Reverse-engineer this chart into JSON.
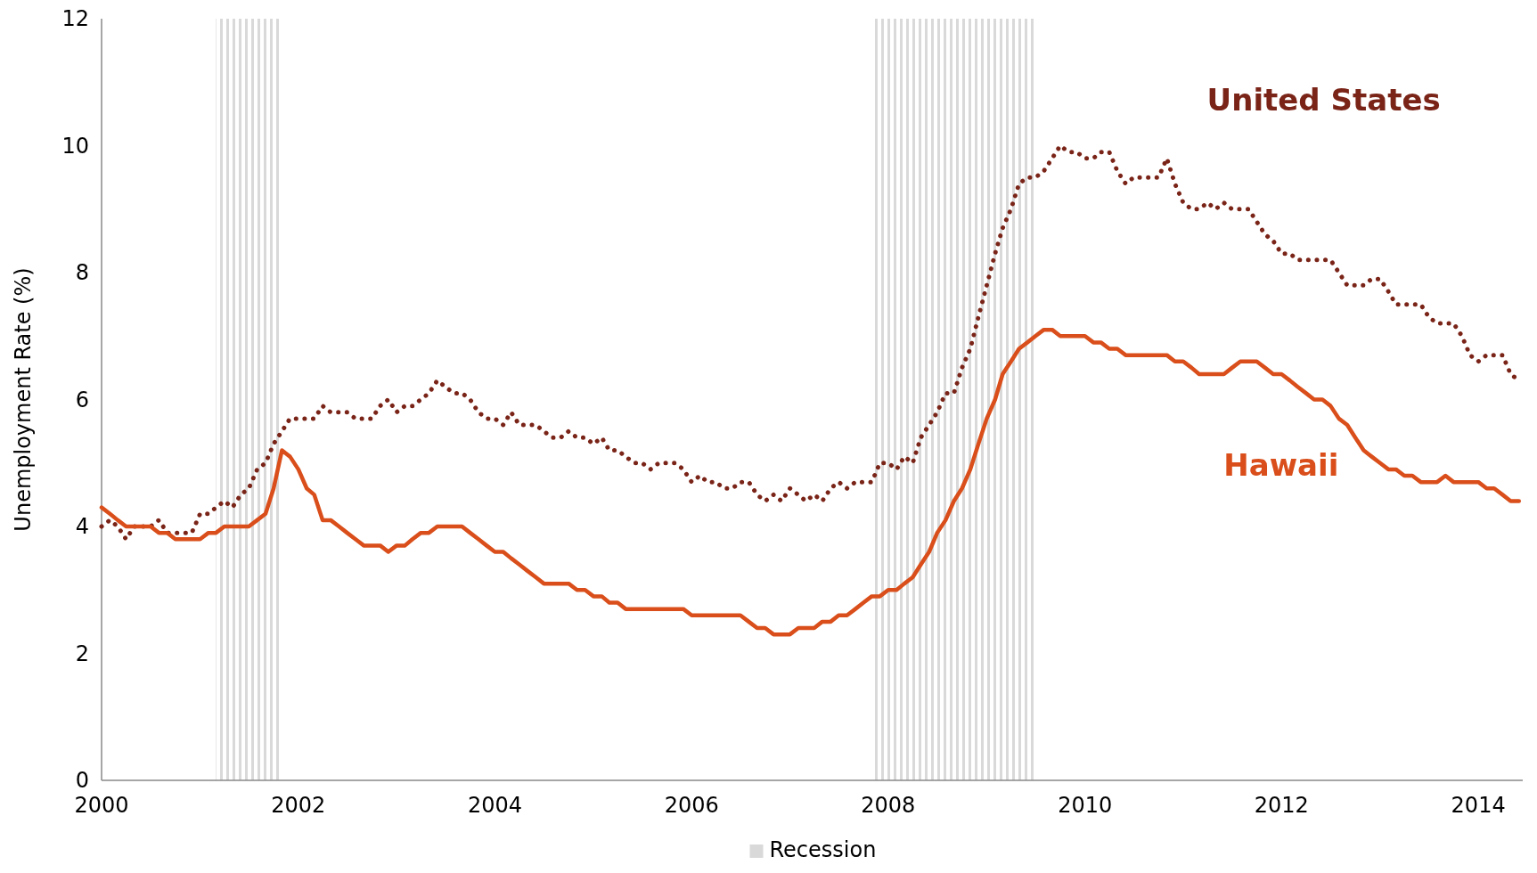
{
  "chart_data": {
    "type": "line",
    "ylabel": "Unemployment Rate (%)",
    "x": [
      "2000-01",
      "2000-02",
      "2000-03",
      "2000-04",
      "2000-05",
      "2000-06",
      "2000-07",
      "2000-08",
      "2000-09",
      "2000-10",
      "2000-11",
      "2000-12",
      "2001-01",
      "2001-02",
      "2001-03",
      "2001-04",
      "2001-05",
      "2001-06",
      "2001-07",
      "2001-08",
      "2001-09",
      "2001-10",
      "2001-11",
      "2001-12",
      "2002-01",
      "2002-02",
      "2002-03",
      "2002-04",
      "2002-05",
      "2002-06",
      "2002-07",
      "2002-08",
      "2002-09",
      "2002-10",
      "2002-11",
      "2002-12",
      "2003-01",
      "2003-02",
      "2003-03",
      "2003-04",
      "2003-05",
      "2003-06",
      "2003-07",
      "2003-08",
      "2003-09",
      "2003-10",
      "2003-11",
      "2003-12",
      "2004-01",
      "2004-02",
      "2004-03",
      "2004-04",
      "2004-05",
      "2004-06",
      "2004-07",
      "2004-08",
      "2004-09",
      "2004-10",
      "2004-11",
      "2004-12",
      "2005-01",
      "2005-02",
      "2005-03",
      "2005-04",
      "2005-05",
      "2005-06",
      "2005-07",
      "2005-08",
      "2005-09",
      "2005-10",
      "2005-11",
      "2005-12",
      "2006-01",
      "2006-02",
      "2006-03",
      "2006-04",
      "2006-05",
      "2006-06",
      "2006-07",
      "2006-08",
      "2006-09",
      "2006-10",
      "2006-11",
      "2006-12",
      "2007-01",
      "2007-02",
      "2007-03",
      "2007-04",
      "2007-05",
      "2007-06",
      "2007-07",
      "2007-08",
      "2007-09",
      "2007-10",
      "2007-11",
      "2007-12",
      "2008-01",
      "2008-02",
      "2008-03",
      "2008-04",
      "2008-05",
      "2008-06",
      "2008-07",
      "2008-08",
      "2008-09",
      "2008-10",
      "2008-11",
      "2008-12",
      "2009-01",
      "2009-02",
      "2009-03",
      "2009-04",
      "2009-05",
      "2009-06",
      "2009-07",
      "2009-08",
      "2009-09",
      "2009-10",
      "2009-11",
      "2009-12",
      "2010-01",
      "2010-02",
      "2010-03",
      "2010-04",
      "2010-05",
      "2010-06",
      "2010-07",
      "2010-08",
      "2010-09",
      "2010-10",
      "2010-11",
      "2010-12",
      "2011-01",
      "2011-02",
      "2011-03",
      "2011-04",
      "2011-05",
      "2011-06",
      "2011-07",
      "2011-08",
      "2011-09",
      "2011-10",
      "2011-11",
      "2011-12",
      "2012-01",
      "2012-02",
      "2012-03",
      "2012-04",
      "2012-05",
      "2012-06",
      "2012-07",
      "2012-08",
      "2012-09",
      "2012-10",
      "2012-11",
      "2012-12",
      "2013-01",
      "2013-02",
      "2013-03",
      "2013-04",
      "2013-05",
      "2013-06",
      "2013-07",
      "2013-08",
      "2013-09",
      "2013-10",
      "2013-11",
      "2013-12",
      "2014-01",
      "2014-02",
      "2014-03",
      "2014-04",
      "2014-05",
      "2014-06"
    ],
    "xlim": [
      "2000-01",
      "2014-06-15"
    ],
    "xticks": [
      "2000",
      "2002",
      "2004",
      "2006",
      "2008",
      "2010",
      "2012",
      "2014"
    ],
    "ylim": [
      0,
      12
    ],
    "yticks": [
      0,
      2,
      4,
      6,
      8,
      10,
      12
    ],
    "grid": false,
    "legend": "bottom",
    "series": [
      {
        "name": "United States",
        "color": "#7a2418",
        "line_style": "dotted",
        "values": [
          4.0,
          4.1,
          4.0,
          3.8,
          4.0,
          4.0,
          4.0,
          4.1,
          3.9,
          3.9,
          3.9,
          3.9,
          4.2,
          4.2,
          4.3,
          4.4,
          4.3,
          4.5,
          4.6,
          4.9,
          5.0,
          5.3,
          5.5,
          5.7,
          5.7,
          5.7,
          5.7,
          5.9,
          5.8,
          5.8,
          5.8,
          5.7,
          5.7,
          5.7,
          5.9,
          6.0,
          5.8,
          5.9,
          5.9,
          6.0,
          6.1,
          6.3,
          6.2,
          6.1,
          6.1,
          6.0,
          5.8,
          5.7,
          5.7,
          5.6,
          5.8,
          5.6,
          5.6,
          5.6,
          5.5,
          5.4,
          5.4,
          5.5,
          5.4,
          5.4,
          5.3,
          5.4,
          5.2,
          5.2,
          5.1,
          5.0,
          5.0,
          4.9,
          5.0,
          5.0,
          5.0,
          4.9,
          4.7,
          4.8,
          4.7,
          4.7,
          4.6,
          4.6,
          4.7,
          4.7,
          4.5,
          4.4,
          4.5,
          4.4,
          4.6,
          4.5,
          4.4,
          4.5,
          4.4,
          4.6,
          4.7,
          4.6,
          4.7,
          4.7,
          4.7,
          5.0,
          5.0,
          4.9,
          5.1,
          5.0,
          5.4,
          5.6,
          5.8,
          6.1,
          6.1,
          6.5,
          6.8,
          7.3,
          7.8,
          8.3,
          8.7,
          9.0,
          9.4,
          9.5,
          9.5,
          9.6,
          9.8,
          10.0,
          9.9,
          9.9,
          9.8,
          9.8,
          9.9,
          9.9,
          9.6,
          9.4,
          9.5,
          9.5,
          9.5,
          9.5,
          9.8,
          9.4,
          9.1,
          9.0,
          9.0,
          9.1,
          9.0,
          9.1,
          9.0,
          9.0,
          9.0,
          8.8,
          8.6,
          8.5,
          8.3,
          8.3,
          8.2,
          8.2,
          8.2,
          8.2,
          8.2,
          8.0,
          7.8,
          7.8,
          7.8,
          7.9,
          7.9,
          7.7,
          7.5,
          7.5,
          7.5,
          7.5,
          7.3,
          7.2,
          7.2,
          7.2,
          7.0,
          6.7,
          6.6,
          6.7,
          6.7,
          6.7,
          6.4,
          6.3
        ]
      },
      {
        "name": "Hawaii",
        "color": "#d94e1a",
        "line_style": "solid",
        "values": [
          4.3,
          4.2,
          4.1,
          4.0,
          4.0,
          4.0,
          4.0,
          3.9,
          3.9,
          3.8,
          3.8,
          3.8,
          3.8,
          3.9,
          3.9,
          4.0,
          4.0,
          4.0,
          4.0,
          4.1,
          4.2,
          4.6,
          5.2,
          5.1,
          4.9,
          4.6,
          4.5,
          4.1,
          4.1,
          4.0,
          3.9,
          3.8,
          3.7,
          3.7,
          3.7,
          3.6,
          3.7,
          3.7,
          3.8,
          3.9,
          3.9,
          4.0,
          4.0,
          4.0,
          4.0,
          3.9,
          3.8,
          3.7,
          3.6,
          3.6,
          3.5,
          3.4,
          3.3,
          3.2,
          3.1,
          3.1,
          3.1,
          3.1,
          3.0,
          3.0,
          2.9,
          2.9,
          2.8,
          2.8,
          2.7,
          2.7,
          2.7,
          2.7,
          2.7,
          2.7,
          2.7,
          2.7,
          2.6,
          2.6,
          2.6,
          2.6,
          2.6,
          2.6,
          2.6,
          2.5,
          2.4,
          2.4,
          2.3,
          2.3,
          2.3,
          2.4,
          2.4,
          2.4,
          2.5,
          2.5,
          2.6,
          2.6,
          2.7,
          2.8,
          2.9,
          2.9,
          3.0,
          3.0,
          3.1,
          3.2,
          3.4,
          3.6,
          3.9,
          4.1,
          4.4,
          4.6,
          4.9,
          5.3,
          5.7,
          6.0,
          6.4,
          6.6,
          6.8,
          6.9,
          7.0,
          7.1,
          7.1,
          7.0,
          7.0,
          7.0,
          7.0,
          6.9,
          6.9,
          6.8,
          6.8,
          6.7,
          6.7,
          6.7,
          6.7,
          6.7,
          6.7,
          6.6,
          6.6,
          6.5,
          6.4,
          6.4,
          6.4,
          6.4,
          6.5,
          6.6,
          6.6,
          6.6,
          6.5,
          6.4,
          6.4,
          6.3,
          6.2,
          6.1,
          6.0,
          6.0,
          5.9,
          5.7,
          5.6,
          5.4,
          5.2,
          5.1,
          5.0,
          4.9,
          4.9,
          4.8,
          4.8,
          4.7,
          4.7,
          4.7,
          4.8,
          4.7,
          4.7,
          4.7,
          4.7,
          4.6,
          4.6,
          4.5,
          4.4,
          4.4
        ]
      }
    ],
    "bands": [
      {
        "axis": "x",
        "from": "2001-03",
        "to": "2001-11",
        "label": "Recession",
        "color": "#d9d9d9"
      },
      {
        "axis": "x",
        "from": "2007-11",
        "to": "2009-07",
        "color": "#d9d9d9"
      }
    ]
  }
}
